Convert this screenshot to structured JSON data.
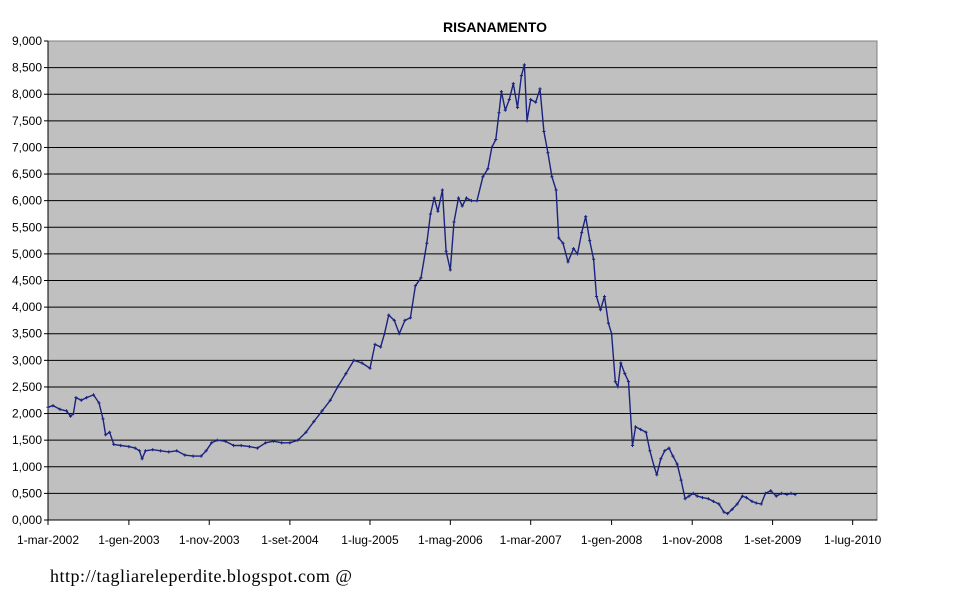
{
  "footer": {
    "text": "http://tagliareleperdite.blogspot.com @"
  },
  "chart_data": {
    "type": "line",
    "title": "RISANAMENTO",
    "xlabel": "",
    "ylabel": "",
    "ylim": [
      0,
      9
    ],
    "xlim": [
      "2002-03-01",
      "2010-10-01"
    ],
    "grid": "horizontal",
    "plot_background": "#c0c0c0",
    "line_color": "#1a237e",
    "marker": "small plus",
    "y_ticks": [
      "0,000",
      "0,500",
      "1,000",
      "1,500",
      "2,000",
      "2,500",
      "3,000",
      "3,500",
      "4,000",
      "4,500",
      "5,000",
      "5,500",
      "6,000",
      "6,500",
      "7,000",
      "7,500",
      "8,000",
      "8,500",
      "9,000"
    ],
    "x_ticks": [
      {
        "label": "1-mar-2002",
        "date": "2002-03-01"
      },
      {
        "label": "1-gen-2003",
        "date": "2003-01-01"
      },
      {
        "label": "1-nov-2003",
        "date": "2003-11-01"
      },
      {
        "label": "1-set-2004",
        "date": "2004-09-01"
      },
      {
        "label": "1-lug-2005",
        "date": "2005-07-01"
      },
      {
        "label": "1-mag-2006",
        "date": "2006-05-01"
      },
      {
        "label": "1-mar-2007",
        "date": "2007-03-01"
      },
      {
        "label": "1-gen-2008",
        "date": "2008-01-01"
      },
      {
        "label": "1-nov-2008",
        "date": "2008-11-01"
      },
      {
        "label": "1-set-2009",
        "date": "2009-09-01"
      },
      {
        "label": "1-lug-2010",
        "date": "2010-07-01"
      }
    ],
    "series": [
      {
        "name": "",
        "points": [
          [
            "2002-03-01",
            2.12
          ],
          [
            "2002-03-20",
            2.15
          ],
          [
            "2002-04-15",
            2.08
          ],
          [
            "2002-05-10",
            2.05
          ],
          [
            "2002-05-25",
            1.95
          ],
          [
            "2002-06-05",
            2.0
          ],
          [
            "2002-06-15",
            2.3
          ],
          [
            "2002-07-05",
            2.25
          ],
          [
            "2002-07-25",
            2.3
          ],
          [
            "2002-08-20",
            2.35
          ],
          [
            "2002-09-10",
            2.2
          ],
          [
            "2002-09-25",
            1.9
          ],
          [
            "2002-10-05",
            1.6
          ],
          [
            "2002-10-20",
            1.65
          ],
          [
            "2002-11-05",
            1.42
          ],
          [
            "2002-12-01",
            1.4
          ],
          [
            "2003-01-01",
            1.38
          ],
          [
            "2003-01-25",
            1.35
          ],
          [
            "2003-02-10",
            1.3
          ],
          [
            "2003-02-20",
            1.15
          ],
          [
            "2003-03-05",
            1.3
          ],
          [
            "2003-04-01",
            1.32
          ],
          [
            "2003-05-01",
            1.3
          ],
          [
            "2003-06-01",
            1.28
          ],
          [
            "2003-07-01",
            1.3
          ],
          [
            "2003-08-01",
            1.22
          ],
          [
            "2003-09-01",
            1.2
          ],
          [
            "2003-10-01",
            1.2
          ],
          [
            "2003-10-20",
            1.3
          ],
          [
            "2003-11-10",
            1.45
          ],
          [
            "2003-12-01",
            1.5
          ],
          [
            "2004-01-01",
            1.48
          ],
          [
            "2004-02-01",
            1.4
          ],
          [
            "2004-03-01",
            1.4
          ],
          [
            "2004-04-01",
            1.38
          ],
          [
            "2004-05-01",
            1.35
          ],
          [
            "2004-06-01",
            1.45
          ],
          [
            "2004-07-01",
            1.48
          ],
          [
            "2004-08-01",
            1.45
          ],
          [
            "2004-09-01",
            1.45
          ],
          [
            "2004-10-01",
            1.5
          ],
          [
            "2004-11-01",
            1.65
          ],
          [
            "2004-12-01",
            1.85
          ],
          [
            "2005-01-01",
            2.05
          ],
          [
            "2005-02-01",
            2.25
          ],
          [
            "2005-03-01",
            2.5
          ],
          [
            "2005-04-01",
            2.75
          ],
          [
            "2005-05-01",
            3.0
          ],
          [
            "2005-06-01",
            2.95
          ],
          [
            "2005-07-01",
            2.85
          ],
          [
            "2005-07-20",
            3.3
          ],
          [
            "2005-08-10",
            3.25
          ],
          [
            "2005-08-25",
            3.5
          ],
          [
            "2005-09-10",
            3.85
          ],
          [
            "2005-10-01",
            3.75
          ],
          [
            "2005-10-20",
            3.5
          ],
          [
            "2005-11-10",
            3.75
          ],
          [
            "2005-12-01",
            3.8
          ],
          [
            "2005-12-20",
            4.4
          ],
          [
            "2006-01-10",
            4.55
          ],
          [
            "2006-02-01",
            5.2
          ],
          [
            "2006-02-15",
            5.75
          ],
          [
            "2006-03-01",
            6.05
          ],
          [
            "2006-03-15",
            5.8
          ],
          [
            "2006-04-01",
            6.2
          ],
          [
            "2006-04-15",
            5.05
          ],
          [
            "2006-05-01",
            4.7
          ],
          [
            "2006-05-15",
            5.6
          ],
          [
            "2006-06-01",
            6.05
          ],
          [
            "2006-06-15",
            5.9
          ],
          [
            "2006-07-01",
            6.05
          ],
          [
            "2006-07-20",
            6.0
          ],
          [
            "2006-08-10",
            6.0
          ],
          [
            "2006-09-01",
            6.45
          ],
          [
            "2006-09-20",
            6.6
          ],
          [
            "2006-10-05",
            7.0
          ],
          [
            "2006-10-20",
            7.15
          ],
          [
            "2006-11-01",
            7.65
          ],
          [
            "2006-11-10",
            8.05
          ],
          [
            "2006-11-25",
            7.7
          ],
          [
            "2006-12-10",
            7.9
          ],
          [
            "2006-12-25",
            8.2
          ],
          [
            "2007-01-10",
            7.75
          ],
          [
            "2007-01-25",
            8.35
          ],
          [
            "2007-02-05",
            8.55
          ],
          [
            "2007-02-15",
            7.5
          ],
          [
            "2007-03-01",
            7.9
          ],
          [
            "2007-03-20",
            7.85
          ],
          [
            "2007-04-05",
            8.1
          ],
          [
            "2007-04-20",
            7.3
          ],
          [
            "2007-05-05",
            6.9
          ],
          [
            "2007-05-20",
            6.45
          ],
          [
            "2007-06-05",
            6.2
          ],
          [
            "2007-06-15",
            5.3
          ],
          [
            "2007-07-01",
            5.2
          ],
          [
            "2007-07-20",
            4.85
          ],
          [
            "2007-08-10",
            5.1
          ],
          [
            "2007-08-25",
            5.0
          ],
          [
            "2007-09-10",
            5.4
          ],
          [
            "2007-09-25",
            5.7
          ],
          [
            "2007-10-10",
            5.25
          ],
          [
            "2007-10-25",
            4.9
          ],
          [
            "2007-11-05",
            4.2
          ],
          [
            "2007-11-20",
            3.95
          ],
          [
            "2007-12-05",
            4.2
          ],
          [
            "2007-12-20",
            3.7
          ],
          [
            "2008-01-01",
            3.5
          ],
          [
            "2008-01-15",
            2.6
          ],
          [
            "2008-01-25",
            2.5
          ],
          [
            "2008-02-05",
            2.95
          ],
          [
            "2008-02-20",
            2.75
          ],
          [
            "2008-03-05",
            2.6
          ],
          [
            "2008-03-20",
            1.4
          ],
          [
            "2008-04-01",
            1.75
          ],
          [
            "2008-04-20",
            1.7
          ],
          [
            "2008-05-10",
            1.65
          ],
          [
            "2008-05-25",
            1.3
          ],
          [
            "2008-06-10",
            1.0
          ],
          [
            "2008-06-20",
            0.85
          ],
          [
            "2008-07-05",
            1.15
          ],
          [
            "2008-07-20",
            1.3
          ],
          [
            "2008-08-05",
            1.35
          ],
          [
            "2008-08-20",
            1.2
          ],
          [
            "2008-09-05",
            1.05
          ],
          [
            "2008-09-20",
            0.75
          ],
          [
            "2008-10-05",
            0.4
          ],
          [
            "2008-10-20",
            0.45
          ],
          [
            "2008-11-05",
            0.5
          ],
          [
            "2008-11-20",
            0.45
          ],
          [
            "2008-12-10",
            0.42
          ],
          [
            "2009-01-01",
            0.4
          ],
          [
            "2009-01-20",
            0.35
          ],
          [
            "2009-02-10",
            0.3
          ],
          [
            "2009-03-01",
            0.15
          ],
          [
            "2009-03-15",
            0.12
          ],
          [
            "2009-04-01",
            0.2
          ],
          [
            "2009-04-20",
            0.3
          ],
          [
            "2009-05-10",
            0.45
          ],
          [
            "2009-05-25",
            0.42
          ],
          [
            "2009-06-15",
            0.35
          ],
          [
            "2009-07-01",
            0.32
          ],
          [
            "2009-07-20",
            0.3
          ],
          [
            "2009-08-05",
            0.5
          ],
          [
            "2009-08-25",
            0.55
          ],
          [
            "2009-09-15",
            0.45
          ],
          [
            "2009-10-05",
            0.5
          ],
          [
            "2009-10-25",
            0.48
          ],
          [
            "2009-11-10",
            0.5
          ],
          [
            "2009-11-25",
            0.48
          ]
        ]
      }
    ]
  }
}
